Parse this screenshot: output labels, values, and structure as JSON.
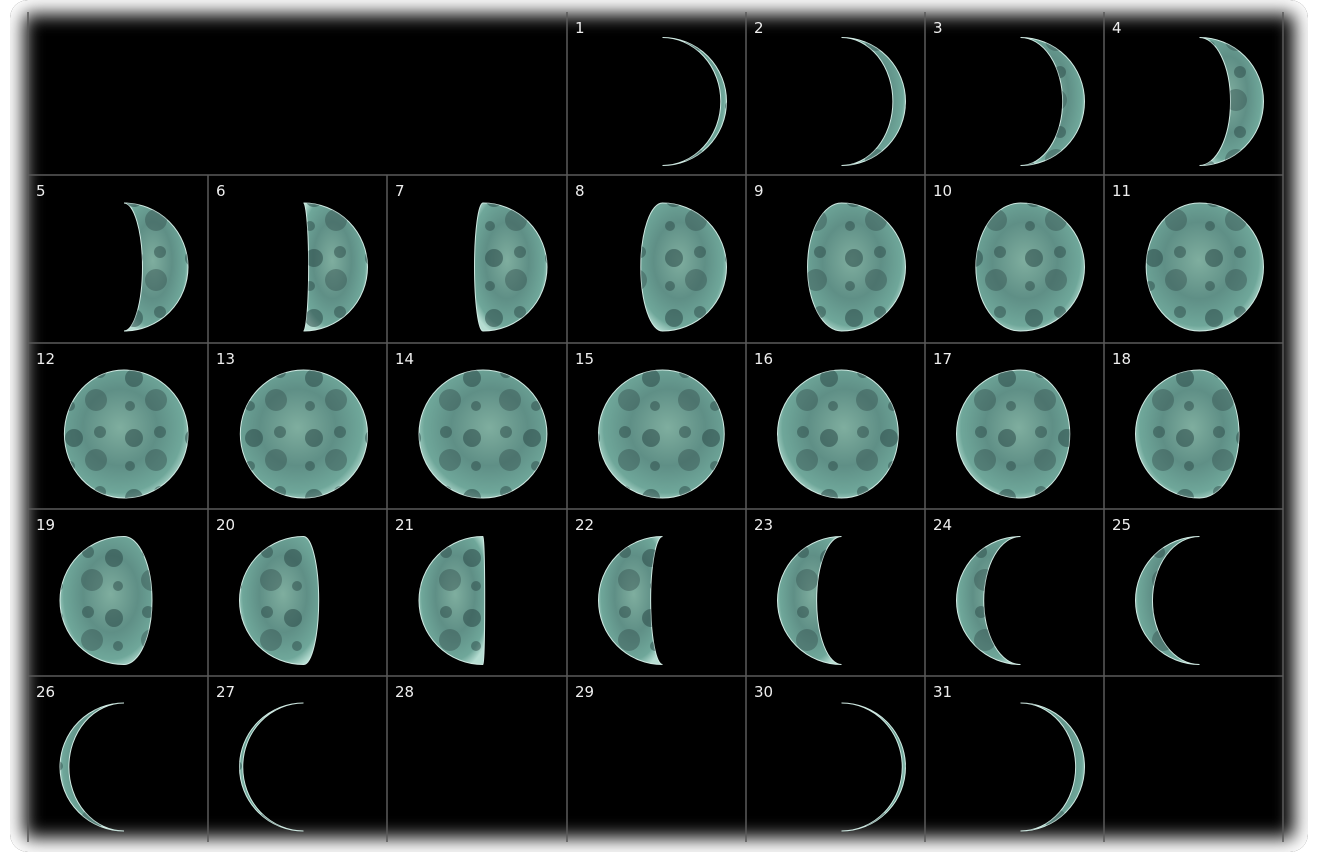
{
  "calendar": {
    "days": [
      "1",
      "2",
      "3",
      "4",
      "5",
      "6",
      "7",
      "8",
      "9",
      "10",
      "11",
      "12",
      "13",
      "14",
      "15",
      "16",
      "17",
      "18",
      "19",
      "20",
      "21",
      "22",
      "23",
      "24",
      "25",
      "26",
      "27",
      "28",
      "29",
      "30",
      "31"
    ]
  }
}
